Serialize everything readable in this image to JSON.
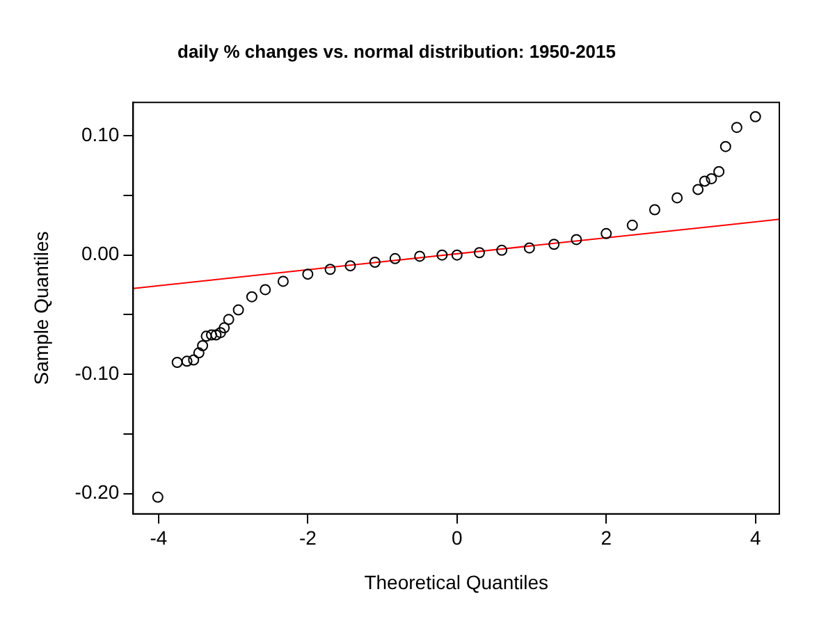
{
  "chart_data": {
    "type": "scatter",
    "title": "daily % changes vs. normal distribution: 1950-2015",
    "xlabel": "Theoretical Quantiles",
    "ylabel": "Sample Quantiles",
    "xlim": [
      -4.34,
      4.32
    ],
    "ylim": [
      -0.217,
      0.128
    ],
    "xticks": [
      {
        "value": -4,
        "label": "-4"
      },
      {
        "value": -2,
        "label": "-2"
      },
      0,
      2,
      4
    ],
    "yticks": [
      {
        "value": -0.2,
        "label": "-0.20"
      },
      {
        "value": -0.15,
        "label": null
      },
      {
        "value": -0.1,
        "label": "-0.10"
      },
      {
        "value": -0.05,
        "label": null
      },
      {
        "value": 0,
        "label": "0.00"
      },
      {
        "value": 0.05,
        "label": null
      },
      {
        "value": 0.1,
        "label": "0.10"
      }
    ],
    "grid": false,
    "legend": false,
    "marker": "circle",
    "series": [
      {
        "type": "scatter",
        "color": "#000000",
        "x": [
          -4.01,
          -3.75,
          -3.62,
          -3.53,
          -3.46,
          -3.41,
          -3.36,
          -3.29,
          -3.23,
          -3.17,
          -3.12,
          -3.06,
          -2.93,
          -2.75,
          -2.57,
          -2.33,
          -2.0,
          -1.7,
          -1.43,
          -1.1,
          -0.83,
          -0.5,
          -0.2,
          0,
          0.3,
          0.6,
          0.97,
          1.3,
          1.6,
          2.0,
          2.35,
          2.65,
          2.95,
          3.23,
          3.32,
          3.41,
          3.51,
          3.6,
          3.75,
          4.0
        ],
        "values": [
          -0.203,
          -0.09,
          -0.089,
          -0.088,
          -0.082,
          -0.076,
          -0.068,
          -0.067,
          -0.067,
          -0.065,
          -0.061,
          -0.054,
          -0.046,
          -0.035,
          -0.029,
          -0.022,
          -0.016,
          -0.012,
          -0.009,
          -0.006,
          -0.003,
          -0.001,
          0,
          0,
          0.002,
          0.004,
          0.006,
          0.009,
          0.013,
          0.018,
          0.025,
          0.038,
          0.048,
          0.055,
          0.062,
          0.064,
          0.07,
          0.091,
          0.107,
          0.116
        ]
      },
      {
        "type": "line",
        "color": "#ff0000",
        "marker": "none",
        "x": [
          -4.34,
          4.32
        ],
        "values": [
          -0.028,
          0.03
        ]
      }
    ]
  }
}
